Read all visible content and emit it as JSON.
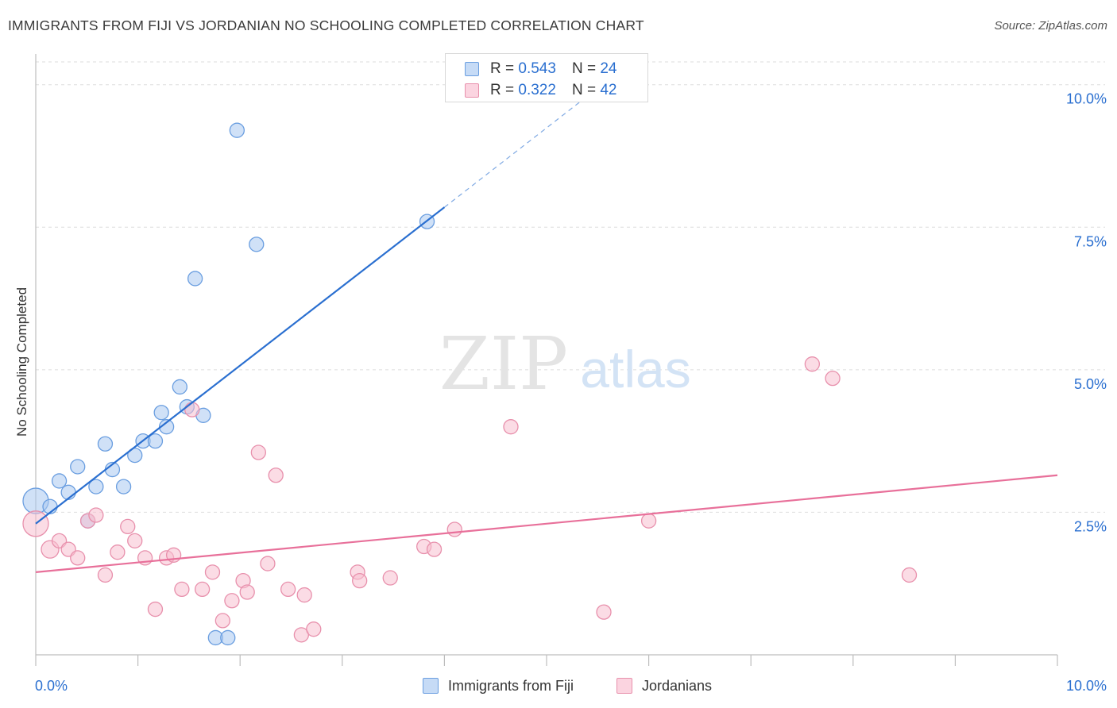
{
  "title": "IMMIGRANTS FROM FIJI VS JORDANIAN NO SCHOOLING COMPLETED CORRELATION CHART",
  "source": "Source: ZipAtlas.com",
  "watermark": {
    "zip": "ZIP",
    "atlas": "atlas"
  },
  "legend": {
    "rows": [
      {
        "r_label": "R =",
        "r_value": "0.543",
        "n_label": "N =",
        "n_value": "24",
        "color": "#a9c8f0",
        "stroke": "#6a9ee0"
      },
      {
        "r_label": "R =",
        "r_value": "0.322",
        "n_label": "N =",
        "n_value": "42",
        "color": "#f7bfd0",
        "stroke": "#e890ac"
      }
    ]
  },
  "chart_data": {
    "type": "scatter",
    "title": "IMMIGRANTS FROM FIJI VS JORDANIAN NO SCHOOLING COMPLETED CORRELATION CHART",
    "xlabel": "",
    "ylabel": "No Schooling Completed",
    "xlim": [
      0,
      10
    ],
    "ylim": [
      0,
      10.4
    ],
    "x_tick_labels": [
      "0.0%",
      "10.0%"
    ],
    "y_tick_labels": [
      "2.5%",
      "5.0%",
      "7.5%",
      "10.0%"
    ],
    "y_ticks": [
      2.5,
      5.0,
      7.5,
      10.0
    ],
    "grid": "horizontal dashed",
    "legend_position": "top-center",
    "series": [
      {
        "name": "Immigrants from Fiji",
        "color": "#a9c8f0",
        "stroke": "#6a9ee0",
        "line_color": "#2a6fd0",
        "trend": {
          "x0": 0.0,
          "y0": 2.3,
          "x1": 4.0,
          "y1": 7.85,
          "dash_to_x": 5.4,
          "dash_to_y": 9.8
        },
        "points": [
          [
            0.0,
            2.7,
            16
          ],
          [
            0.14,
            2.6,
            9
          ],
          [
            0.23,
            3.05,
            9
          ],
          [
            0.32,
            2.85,
            9
          ],
          [
            0.41,
            3.3,
            9
          ],
          [
            0.51,
            2.35,
            9
          ],
          [
            0.59,
            2.95,
            9
          ],
          [
            0.68,
            3.7,
            9
          ],
          [
            0.75,
            3.25,
            9
          ],
          [
            0.86,
            2.95,
            9
          ],
          [
            0.97,
            3.5,
            9
          ],
          [
            1.05,
            3.75,
            9
          ],
          [
            1.17,
            3.75,
            9
          ],
          [
            1.23,
            4.25,
            9
          ],
          [
            1.28,
            4.0,
            9
          ],
          [
            1.41,
            4.7,
            9
          ],
          [
            1.48,
            4.35,
            9
          ],
          [
            1.56,
            6.6,
            9
          ],
          [
            1.64,
            4.2,
            9
          ],
          [
            1.76,
            0.3,
            9
          ],
          [
            1.88,
            0.3,
            9
          ],
          [
            1.97,
            9.2,
            9
          ],
          [
            2.16,
            7.2,
            9
          ],
          [
            3.83,
            7.6,
            9
          ]
        ]
      },
      {
        "name": "Jordanians",
        "color": "#f7bfd0",
        "stroke": "#e890ac",
        "line_color": "#e8709a",
        "trend": {
          "x0": 0.0,
          "y0": 1.45,
          "x1": 10.0,
          "y1": 3.15
        },
        "points": [
          [
            0.0,
            2.3,
            16
          ],
          [
            0.14,
            1.85,
            11
          ],
          [
            0.23,
            2.0,
            9
          ],
          [
            0.32,
            1.85,
            9
          ],
          [
            0.41,
            1.7,
            9
          ],
          [
            0.51,
            2.35,
            9
          ],
          [
            0.59,
            2.45,
            9
          ],
          [
            0.68,
            1.4,
            9
          ],
          [
            0.8,
            1.8,
            9
          ],
          [
            0.9,
            2.25,
            9
          ],
          [
            0.97,
            2.0,
            9
          ],
          [
            1.07,
            1.7,
            9
          ],
          [
            1.17,
            0.8,
            9
          ],
          [
            1.28,
            1.7,
            9
          ],
          [
            1.35,
            1.75,
            9
          ],
          [
            1.43,
            1.15,
            9
          ],
          [
            1.53,
            4.3,
            9
          ],
          [
            1.63,
            1.15,
            9
          ],
          [
            1.73,
            1.45,
            9
          ],
          [
            1.83,
            0.6,
            9
          ],
          [
            1.92,
            0.95,
            9
          ],
          [
            2.03,
            1.3,
            9
          ],
          [
            2.07,
            1.1,
            9
          ],
          [
            2.18,
            3.55,
            9
          ],
          [
            2.27,
            1.6,
            9
          ],
          [
            2.35,
            3.15,
            9
          ],
          [
            2.47,
            1.15,
            9
          ],
          [
            2.6,
            0.35,
            9
          ],
          [
            2.63,
            1.05,
            9
          ],
          [
            2.72,
            0.45,
            9
          ],
          [
            3.15,
            1.45,
            9
          ],
          [
            3.17,
            1.3,
            9
          ],
          [
            3.47,
            1.35,
            9
          ],
          [
            3.8,
            1.9,
            9
          ],
          [
            3.9,
            1.85,
            9
          ],
          [
            4.1,
            2.2,
            9
          ],
          [
            4.65,
            4.0,
            9
          ],
          [
            5.56,
            0.75,
            9
          ],
          [
            6.0,
            2.35,
            9
          ],
          [
            7.6,
            5.1,
            9
          ],
          [
            7.8,
            4.85,
            9
          ],
          [
            8.55,
            1.4,
            9
          ]
        ]
      }
    ]
  }
}
